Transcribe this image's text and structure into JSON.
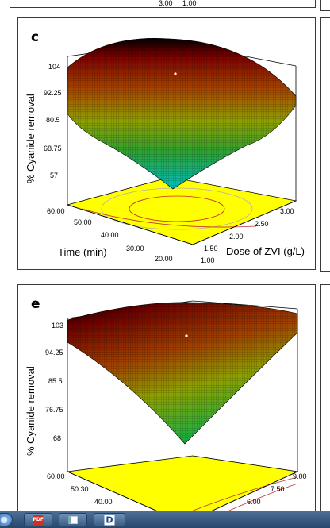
{
  "top_fragment": {
    "tick_left": "3.00",
    "tick_right": "1.00"
  },
  "panel_c": {
    "label": "c",
    "zlabel": "% Cyanide removal",
    "zticks": [
      "104",
      "92.25",
      "80.5",
      "68.75",
      "57"
    ],
    "time_ticks": [
      "60.00",
      "50.00",
      "40.00",
      "30.00",
      "20.00"
    ],
    "time_label": "Time (min)",
    "dose_ticks": [
      "1.00",
      "1.50",
      "2.00",
      "2.50",
      "3.00"
    ],
    "dose_label": "Dose of ZVI (g/L)"
  },
  "panel_e": {
    "label": "e",
    "zlabel": "% Cyanide removal",
    "zticks": [
      "103",
      "94.25",
      "85.5",
      "76.75",
      "68"
    ],
    "time_ticks": [
      "60.00",
      "50.30",
      "40.00"
    ],
    "x_ticks": [
      "9.00",
      "7.50",
      "6.00"
    ]
  },
  "taskbar": {
    "items": [
      {
        "icon": "start-orb-icon"
      },
      {
        "icon": "pdf-icon",
        "text": "PDF"
      },
      {
        "icon": "window-icon"
      },
      {
        "icon": "d-app-icon",
        "text": "D"
      }
    ]
  },
  "colors": {
    "surface_high": "#7a0000",
    "surface_mid": "#b8b800",
    "surface_low": "#00b3b3",
    "floor": "#ffff00"
  }
}
